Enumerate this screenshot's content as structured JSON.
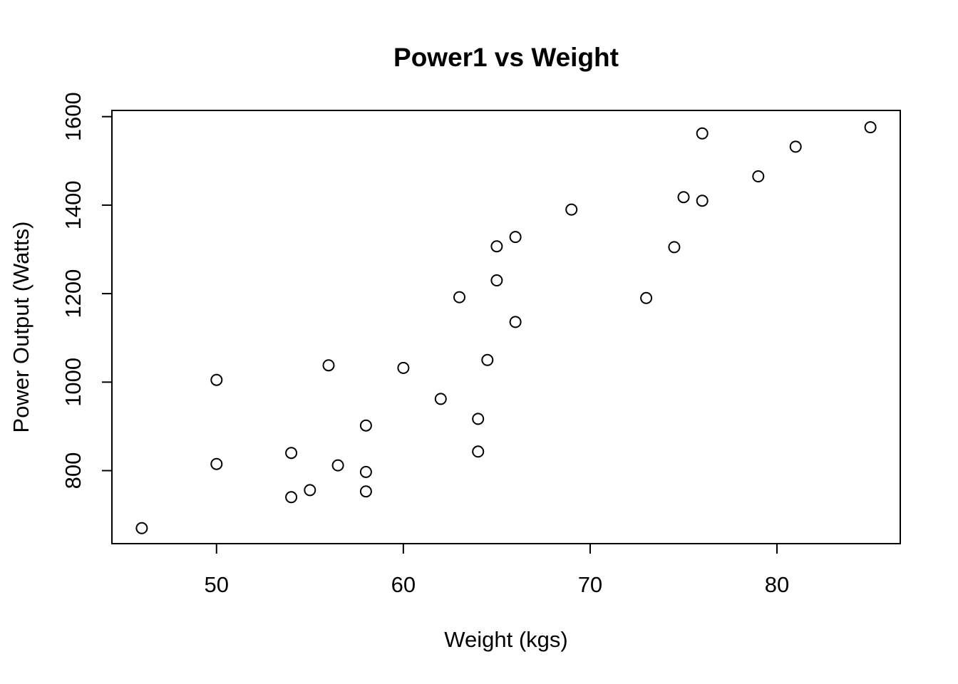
{
  "window": {
    "background": "#ffffff"
  },
  "colors": {
    "foreground": "#000000",
    "background": "#ffffff"
  },
  "chart_data": {
    "type": "scatter",
    "title": "Power1 vs Weight",
    "xlabel": "Weight (kgs)",
    "ylabel": "Power Output (Watts)",
    "xlim": [
      44.4,
      86.6
    ],
    "ylim": [
      635,
      1614
    ],
    "x_ticks": [
      50,
      60,
      70,
      80
    ],
    "y_ticks": [
      800,
      1000,
      1200,
      1400,
      1600
    ],
    "grid": false,
    "legend": null,
    "marker": {
      "shape": "open-circle",
      "color": "#000000",
      "radius_px": 7.5,
      "stroke_px": 2
    },
    "points": [
      {
        "x": 46,
        "y": 670
      },
      {
        "x": 50,
        "y": 815
      },
      {
        "x": 50,
        "y": 1005
      },
      {
        "x": 54,
        "y": 740
      },
      {
        "x": 54,
        "y": 840
      },
      {
        "x": 55,
        "y": 756
      },
      {
        "x": 56,
        "y": 1038
      },
      {
        "x": 56.5,
        "y": 812
      },
      {
        "x": 58,
        "y": 753
      },
      {
        "x": 58,
        "y": 797
      },
      {
        "x": 58,
        "y": 902
      },
      {
        "x": 60,
        "y": 1032
      },
      {
        "x": 62,
        "y": 962
      },
      {
        "x": 63,
        "y": 1192
      },
      {
        "x": 64,
        "y": 843
      },
      {
        "x": 64,
        "y": 917
      },
      {
        "x": 64.5,
        "y": 1050
      },
      {
        "x": 65,
        "y": 1230
      },
      {
        "x": 65,
        "y": 1307
      },
      {
        "x": 66,
        "y": 1136
      },
      {
        "x": 66,
        "y": 1328
      },
      {
        "x": 69,
        "y": 1390
      },
      {
        "x": 73,
        "y": 1190
      },
      {
        "x": 74.5,
        "y": 1305
      },
      {
        "x": 75,
        "y": 1418
      },
      {
        "x": 76,
        "y": 1410
      },
      {
        "x": 76,
        "y": 1562
      },
      {
        "x": 79,
        "y": 1465
      },
      {
        "x": 81,
        "y": 1532
      },
      {
        "x": 85,
        "y": 1576
      }
    ]
  }
}
